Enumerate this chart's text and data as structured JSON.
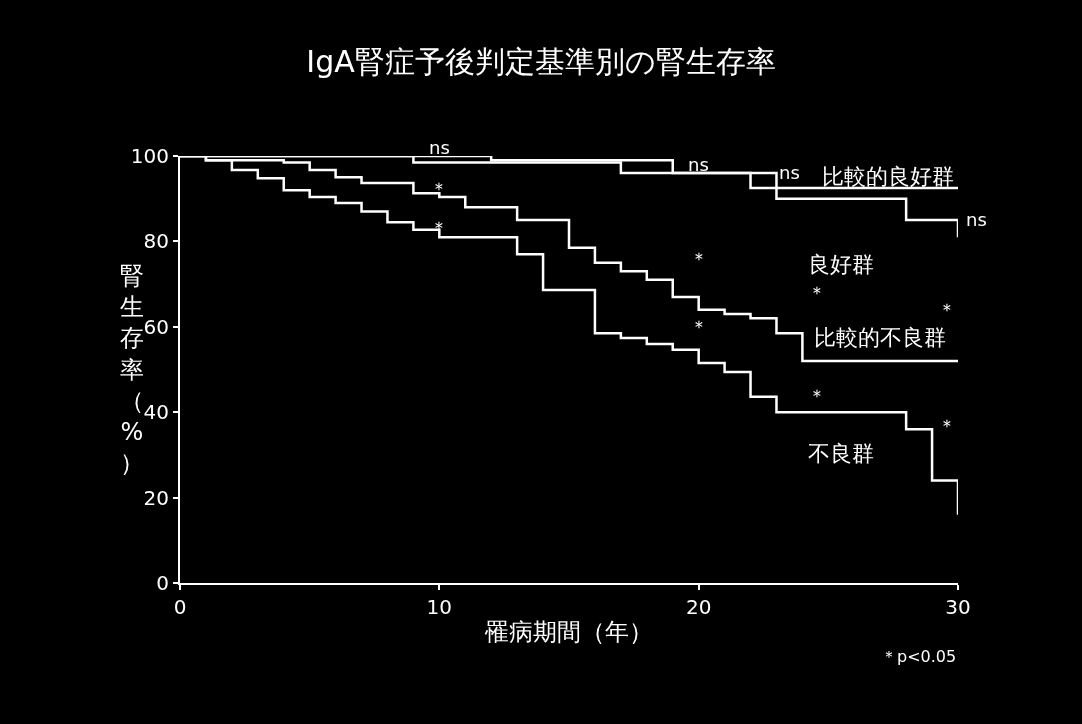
{
  "chart_data": {
    "type": "step",
    "title": "IgA腎症予後判定基準別の腎生存率",
    "xlabel": "罹病期間（年）",
    "ylabel": "腎生存率（%）",
    "xlim": [
      0,
      30
    ],
    "xticks": [
      0,
      10,
      20,
      30
    ],
    "ylim": [
      0,
      100
    ],
    "yticks": [
      0,
      20,
      40,
      60,
      80,
      100
    ],
    "grid": false,
    "legend": false,
    "marker": "none",
    "line_style": "solid",
    "series": [
      {
        "name": "比較的良好群",
        "color": "#ffffff",
        "x": [
          0,
          12,
          19,
          22,
          30
        ],
        "values": [
          100,
          99,
          96,
          92.5,
          92.5
        ]
      },
      {
        "name": "良好群",
        "color": "#ffffff",
        "x": [
          0,
          9,
          17,
          23,
          28,
          30
        ],
        "values": [
          100,
          98.5,
          96,
          90,
          85,
          81
        ]
      },
      {
        "name": "比較的不良群",
        "color": "#ffffff",
        "x": [
          0,
          1,
          4,
          5,
          6,
          7,
          9,
          10,
          11,
          13,
          15,
          16,
          17,
          18,
          19,
          20,
          21,
          22,
          23,
          24,
          30
        ],
        "values": [
          100,
          99,
          98.5,
          96.7,
          95,
          93.7,
          91.3,
          90.4,
          88,
          85,
          78.5,
          75,
          73,
          71,
          67,
          64,
          63,
          62,
          58.5,
          52,
          52
        ]
      },
      {
        "name": "不良群",
        "color": "#ffffff",
        "x": [
          0,
          1,
          2,
          3,
          4,
          5,
          6,
          7,
          8,
          9,
          10,
          13,
          14,
          16,
          17,
          18,
          19,
          20,
          21,
          22,
          23,
          28,
          29,
          30
        ],
        "values": [
          100,
          99,
          96.7,
          94.8,
          92,
          90.4,
          89,
          87,
          84.5,
          82.7,
          81,
          77,
          68.6,
          58.5,
          57.4,
          56,
          54.6,
          51.5,
          49.4,
          43.6,
          40,
          36,
          24,
          16
        ]
      }
    ],
    "annotations": [
      "ns",
      "＊",
      "＊",
      "ns",
      "＊",
      "＊",
      "ns",
      "＊",
      "＊",
      "ns",
      "＊",
      "＊",
      "＊p<0.05"
    ]
  }
}
